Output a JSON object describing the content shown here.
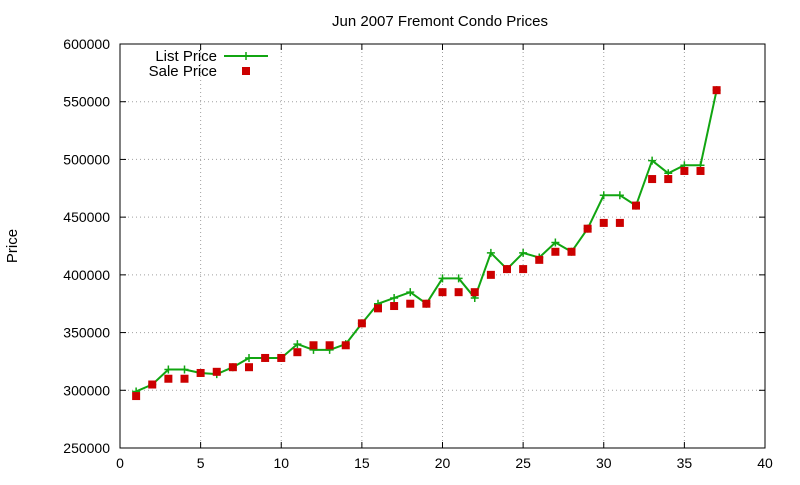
{
  "chart_data": {
    "type": "line",
    "title": "Jun 2007 Fremont Condo Prices",
    "xlabel": "",
    "ylabel": "Price",
    "xlim": [
      0,
      40
    ],
    "ylim": [
      250000,
      600000
    ],
    "xticks": [
      "0",
      "5",
      "10",
      "15",
      "20",
      "25",
      "30",
      "35",
      "40"
    ],
    "yticks": [
      "250000",
      "300000",
      "350000",
      "400000",
      "450000",
      "500000",
      "550000",
      "600000"
    ],
    "grid": true,
    "legend_position": "top-left",
    "series": [
      {
        "name": "List Price",
        "style": "line-with-plus-markers",
        "color": "#11a511",
        "x": [
          1,
          2,
          3,
          4,
          5,
          6,
          7,
          8,
          9,
          10,
          11,
          12,
          13,
          14,
          15,
          16,
          17,
          18,
          19,
          20,
          21,
          22,
          23,
          24,
          25,
          26,
          27,
          28,
          29,
          30,
          31,
          32,
          33,
          34,
          35,
          36,
          37
        ],
        "values": [
          299000,
          305000,
          318000,
          318000,
          315000,
          314000,
          320000,
          328000,
          328000,
          328000,
          340000,
          335000,
          335000,
          340000,
          358000,
          375000,
          380000,
          385000,
          375000,
          397000,
          397000,
          380000,
          419000,
          405000,
          419000,
          415000,
          428000,
          420000,
          440000,
          469000,
          469000,
          460000,
          499000,
          488000,
          495000,
          495000,
          560000
        ]
      },
      {
        "name": "Sale Price",
        "style": "square-markers",
        "color": "#cc0000",
        "x": [
          1,
          2,
          3,
          4,
          5,
          6,
          7,
          8,
          9,
          10,
          11,
          12,
          13,
          14,
          15,
          16,
          17,
          18,
          19,
          20,
          21,
          22,
          23,
          24,
          25,
          26,
          27,
          28,
          29,
          30,
          31,
          32,
          33,
          34,
          35,
          36,
          37
        ],
        "values": [
          295000,
          305000,
          310000,
          310000,
          315000,
          316000,
          320000,
          320000,
          328000,
          328000,
          333000,
          339000,
          339000,
          339000,
          358000,
          371000,
          373000,
          375000,
          375000,
          385000,
          385000,
          385000,
          400000,
          405000,
          405000,
          413000,
          420000,
          420000,
          440000,
          445000,
          445000,
          460000,
          483000,
          483000,
          490000,
          490000,
          560000
        ]
      }
    ]
  }
}
